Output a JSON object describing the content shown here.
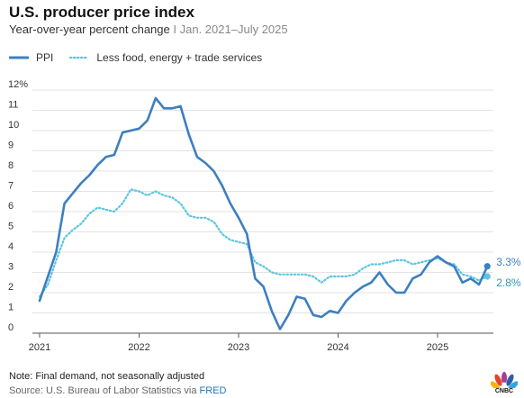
{
  "header": {
    "title": "U.S. producer price index",
    "subtitle_main": "Year-over-year percent change",
    "subtitle_sep": "I",
    "subtitle_range": "Jan. 2021–July 2025"
  },
  "footer": {
    "note": "Note: Final demand, not seasonally adjusted",
    "source_prefix": "Source: U.S. Bureau of Labor Statistics via ",
    "source_link": "FRED"
  },
  "logo": {
    "wordmark": "CNBC",
    "icon": "cnbc-peacock-icon"
  },
  "colors": {
    "ppi": "#3d7fc0",
    "core": "#5bc6e0",
    "grid": "#e3e3e3",
    "axis": "#555555"
  },
  "chart_data": {
    "type": "line",
    "ylim": [
      0,
      12
    ],
    "yticks": [
      "0",
      "1",
      "2",
      "3",
      "4",
      "5",
      "6",
      "7",
      "8",
      "9",
      "10",
      "11",
      "12%"
    ],
    "xticks": [
      "2021",
      "2022",
      "2023",
      "2024",
      "2025"
    ],
    "legend_position": "top-left",
    "grid": true,
    "series": [
      {
        "name": "PPI",
        "style": "solid",
        "end_label": "3.3%",
        "points": [
          [
            "2021-01",
            1.6
          ],
          [
            "2021-02",
            2.8
          ],
          [
            "2021-03",
            4.0
          ],
          [
            "2021-04",
            6.4
          ],
          [
            "2021-05",
            6.9
          ],
          [
            "2021-06",
            7.4
          ],
          [
            "2021-07",
            7.8
          ],
          [
            "2021-08",
            8.3
          ],
          [
            "2021-09",
            8.7
          ],
          [
            "2021-10",
            8.8
          ],
          [
            "2021-11",
            9.9
          ],
          [
            "2021-12",
            10.0
          ],
          [
            "2022-01",
            10.1
          ],
          [
            "2022-02",
            10.5
          ],
          [
            "2022-03",
            11.6
          ],
          [
            "2022-04",
            11.1
          ],
          [
            "2022-05",
            11.1
          ],
          [
            "2022-06",
            11.2
          ],
          [
            "2022-07",
            9.8
          ],
          [
            "2022-08",
            8.7
          ],
          [
            "2022-09",
            8.4
          ],
          [
            "2022-10",
            8.0
          ],
          [
            "2022-11",
            7.3
          ],
          [
            "2022-12",
            6.4
          ],
          [
            "2023-01",
            5.7
          ],
          [
            "2023-02",
            4.9
          ],
          [
            "2023-03",
            2.7
          ],
          [
            "2023-04",
            2.3
          ],
          [
            "2023-05",
            1.1
          ],
          [
            "2023-06",
            0.2
          ],
          [
            "2023-07",
            0.9
          ],
          [
            "2023-08",
            1.8
          ],
          [
            "2023-09",
            1.7
          ],
          [
            "2023-10",
            0.9
          ],
          [
            "2023-11",
            0.8
          ],
          [
            "2023-12",
            1.1
          ],
          [
            "2024-01",
            1.0
          ],
          [
            "2024-02",
            1.6
          ],
          [
            "2024-03",
            2.0
          ],
          [
            "2024-04",
            2.3
          ],
          [
            "2024-05",
            2.5
          ],
          [
            "2024-06",
            3.0
          ],
          [
            "2024-07",
            2.4
          ],
          [
            "2024-08",
            2.0
          ],
          [
            "2024-09",
            2.0
          ],
          [
            "2024-10",
            2.7
          ],
          [
            "2024-11",
            2.9
          ],
          [
            "2024-12",
            3.5
          ],
          [
            "2025-01",
            3.8
          ],
          [
            "2025-02",
            3.5
          ],
          [
            "2025-03",
            3.3
          ],
          [
            "2025-04",
            2.5
          ],
          [
            "2025-05",
            2.7
          ],
          [
            "2025-06",
            2.4
          ],
          [
            "2025-07",
            3.3
          ]
        ]
      },
      {
        "name": "Less food, energy + trade services",
        "style": "dotted",
        "end_label": "2.8%",
        "points": [
          [
            "2021-01",
            1.8
          ],
          [
            "2021-02",
            2.4
          ],
          [
            "2021-03",
            3.6
          ],
          [
            "2021-04",
            4.7
          ],
          [
            "2021-05",
            5.1
          ],
          [
            "2021-06",
            5.4
          ],
          [
            "2021-07",
            5.9
          ],
          [
            "2021-08",
            6.2
          ],
          [
            "2021-09",
            6.1
          ],
          [
            "2021-10",
            6.0
          ],
          [
            "2021-11",
            6.4
          ],
          [
            "2021-12",
            7.1
          ],
          [
            "2022-01",
            7.0
          ],
          [
            "2022-02",
            6.8
          ],
          [
            "2022-03",
            7.0
          ],
          [
            "2022-04",
            6.8
          ],
          [
            "2022-05",
            6.7
          ],
          [
            "2022-06",
            6.4
          ],
          [
            "2022-07",
            5.8
          ],
          [
            "2022-08",
            5.7
          ],
          [
            "2022-09",
            5.7
          ],
          [
            "2022-10",
            5.5
          ],
          [
            "2022-11",
            4.9
          ],
          [
            "2022-12",
            4.6
          ],
          [
            "2023-01",
            4.5
          ],
          [
            "2023-02",
            4.4
          ],
          [
            "2023-03",
            3.5
          ],
          [
            "2023-04",
            3.3
          ],
          [
            "2023-05",
            3.0
          ],
          [
            "2023-06",
            2.9
          ],
          [
            "2023-07",
            2.9
          ],
          [
            "2023-08",
            2.9
          ],
          [
            "2023-09",
            2.9
          ],
          [
            "2023-10",
            2.8
          ],
          [
            "2023-11",
            2.5
          ],
          [
            "2023-12",
            2.8
          ],
          [
            "2024-01",
            2.8
          ],
          [
            "2024-02",
            2.8
          ],
          [
            "2024-03",
            2.9
          ],
          [
            "2024-04",
            3.2
          ],
          [
            "2024-05",
            3.4
          ],
          [
            "2024-06",
            3.4
          ],
          [
            "2024-07",
            3.5
          ],
          [
            "2024-08",
            3.6
          ],
          [
            "2024-09",
            3.6
          ],
          [
            "2024-10",
            3.4
          ],
          [
            "2024-11",
            3.5
          ],
          [
            "2024-12",
            3.6
          ],
          [
            "2025-01",
            3.7
          ],
          [
            "2025-02",
            3.5
          ],
          [
            "2025-03",
            3.4
          ],
          [
            "2025-04",
            2.9
          ],
          [
            "2025-05",
            2.8
          ],
          [
            "2025-06",
            2.6
          ],
          [
            "2025-07",
            2.8
          ]
        ]
      }
    ]
  }
}
